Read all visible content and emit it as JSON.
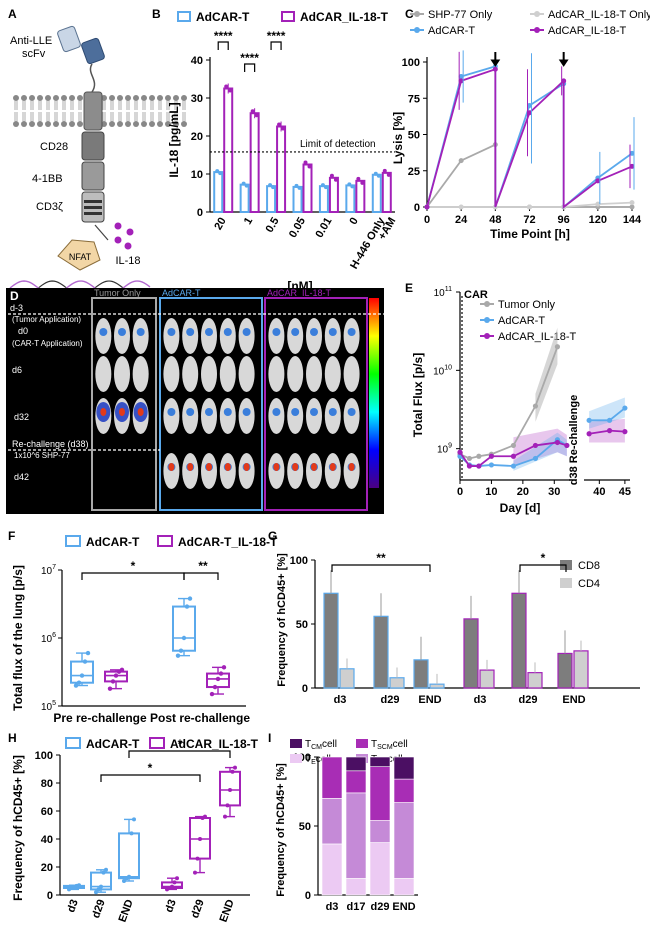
{
  "colors": {
    "adcar": "#5aa9ec",
    "il18": "#a321b8",
    "shp": "#a9a9a9",
    "il18only": "#cfcfcf",
    "cd8": "#7d7d7d",
    "cd4": "#cfcfcf",
    "tcm": "#4b0f63",
    "tscm": "#a82db5",
    "te": "#eccaf3",
    "tem": "#c58ad7"
  },
  "panelA": {
    "label": "A",
    "scfv": "Anti-LLE\nscFv",
    "cd28": "CD28",
    "bb": "4-1BB",
    "cd3z": "CD3ζ",
    "nfat": "NFAT",
    "il18": "IL-18"
  },
  "panelB": {
    "label": "B",
    "legend": [
      "AdCAR-T",
      "AdCAR_IL-18-T"
    ],
    "ylabel": "IL-18 [pg/mL]",
    "xlabel": "[nM]",
    "lod": "Limit of detection",
    "sig": "****",
    "ylim": [
      0,
      40
    ],
    "yticks": [
      "0",
      "10",
      "20",
      "30",
      "40"
    ],
    "categories": [
      "20",
      "1",
      "0.5",
      "0.05",
      "0.01",
      "0",
      "H-446 Only\n+AM"
    ],
    "adcar": [
      10.5,
      7.2,
      6.8,
      6.6,
      6.8,
      7.0,
      9.8
    ],
    "il18": [
      32.5,
      26,
      22.5,
      12.5,
      9.0,
      8.2,
      10.3
    ],
    "lodValue": 15.8
  },
  "panelC": {
    "label": "C",
    "legend": [
      "SHP-77 Only",
      "AdCAR_IL-18-T Only",
      "AdCAR-T",
      "AdCAR_IL-18-T"
    ],
    "ylabel": "Lysis [%]",
    "xlabel": "Time Point [h]",
    "xticks": [
      "0",
      "24",
      "48",
      "72",
      "96",
      "120",
      "144"
    ],
    "yticks": [
      "0",
      "25",
      "50",
      "75",
      "100"
    ],
    "shp": [
      0,
      32,
      43,
      0,
      0,
      0,
      0
    ],
    "il18only": [
      0,
      0,
      0,
      0,
      0,
      2,
      3
    ],
    "adcar": [
      0,
      90,
      97,
      70,
      85,
      20,
      37
    ],
    "il18": [
      0,
      87,
      95,
      65,
      87,
      18,
      28
    ]
  },
  "panelD": {
    "label": "D",
    "cols": [
      "Tumor Only",
      "AdCAR-T",
      "AdCAR_IL-18-T"
    ],
    "rows": [
      "d-3",
      "(Tumor Application)",
      "d0",
      "(CAR-T Application)",
      "d6",
      "d32",
      "Re-challenge (d38)",
      "1x10^6 SHP-77",
      "d42"
    ]
  },
  "panelE": {
    "label": "E",
    "car": "CAR",
    "legend": [
      "Tumor Only",
      "AdCAR-T",
      "AdCAR_IL-18-T"
    ],
    "ylabel": "Total Flux [p/s]",
    "xlabel": "Day [d]",
    "rechallenge": "d38 Re-challenge",
    "xticks": [
      "0",
      "10",
      "20",
      "30"
    ],
    "xticks2": [
      "40",
      "45"
    ],
    "yticks": [
      "10^9",
      "10^10",
      "10^11"
    ],
    "days": [
      0,
      3,
      6,
      10,
      17,
      24,
      31,
      34
    ],
    "tumor": [
      850000000.0,
      750000000.0,
      800000000.0,
      850000000.0,
      1100000000.0,
      3500000000.0,
      20000000000.0,
      null
    ],
    "adcar": [
      800000000.0,
      620000000.0,
      600000000.0,
      620000000.0,
      600000000.0,
      750000000.0,
      1300000000.0,
      1100000000.0
    ],
    "il18": [
      900000000.0,
      600000000.0,
      600000000.0,
      800000000.0,
      800000000.0,
      1100000000.0,
      1200000000.0,
      1100000000.0
    ],
    "re_days": [
      38,
      42,
      45
    ],
    "re_adcar": [
      2300000000.0,
      2300000000.0,
      3300000000.0
    ],
    "re_il18": [
      1550000000.0,
      1700000000.0,
      1650000000.0
    ]
  },
  "panelF": {
    "label": "F",
    "legend": [
      "AdCAR-T",
      "AdCAR-T_IL-18-T"
    ],
    "ylabel": "Total flux of the lung [p/s]",
    "categories": [
      "Pre re-challenge",
      "Post re-challenge"
    ],
    "yticks": [
      "10^5",
      "10^6",
      "10^7"
    ],
    "sig1": "*",
    "sig2": "**",
    "adcar_pre": {
      "min": 200000.0,
      "q1": 220000.0,
      "med": 280000.0,
      "q3": 450000.0,
      "max": 600000.0
    },
    "il18_pre": {
      "min": 180000.0,
      "q1": 230000.0,
      "med": 280000.0,
      "q3": 320000.0,
      "max": 340000.0
    },
    "adcar_post": {
      "min": 550000.0,
      "q1": 650000.0,
      "med": 1000000.0,
      "q3": 2900000.0,
      "max": 3800000.0
    },
    "il18_post": {
      "min": 150000.0,
      "q1": 190000.0,
      "med": 250000.0,
      "q3": 300000.0,
      "max": 370000.0
    }
  },
  "panelG": {
    "label": "G",
    "ylabel": "Frequency of hCD45+ [%]",
    "legend": [
      "CD8",
      "CD4"
    ],
    "sig1": "**",
    "sig2": "*",
    "categories": [
      "d3",
      "d29",
      "END",
      "d3",
      "d29",
      "END"
    ],
    "yticks": [
      "0",
      "50",
      "100"
    ],
    "cd8": [
      74,
      56,
      22,
      54,
      74,
      27
    ],
    "cd4": [
      15,
      8,
      3,
      14,
      12,
      29
    ]
  },
  "panelH": {
    "label": "H",
    "legend": [
      "AdCAR-T",
      "AdCAR_IL-18-T"
    ],
    "ylabel": "Frequency of hCD45+ [%]",
    "categories": [
      "d3",
      "d29",
      "END",
      "d3",
      "d29",
      "END"
    ],
    "yticks": [
      "0",
      "20",
      "40",
      "60",
      "80",
      "100"
    ],
    "sig": "*",
    "boxes": [
      {
        "min": 4,
        "q1": 5,
        "med": 6,
        "q3": 6.5,
        "max": 7
      },
      {
        "min": 2,
        "q1": 4,
        "med": 6,
        "q3": 16,
        "max": 18
      },
      {
        "min": 10,
        "q1": 12,
        "med": 13,
        "q3": 44,
        "max": 54
      },
      {
        "min": 4,
        "q1": 5,
        "med": 6,
        "q3": 9,
        "max": 12
      },
      {
        "min": 16,
        "q1": 26,
        "med": 40,
        "q3": 55,
        "max": 56
      },
      {
        "min": 56,
        "q1": 64,
        "med": 75,
        "q3": 88,
        "max": 91
      }
    ]
  },
  "panelI": {
    "label": "I",
    "ylabel": "Frequency of hCD45+ [%]",
    "categories": [
      "d3",
      "d17",
      "d29",
      "END"
    ],
    "legend": [
      "T",
      "CM",
      "cell",
      "T",
      "SCM",
      "cell",
      "T",
      "E",
      "cell",
      "T",
      "EM",
      "cell"
    ],
    "yticks": [
      "0",
      "50",
      "100"
    ],
    "te": [
      37,
      12,
      38,
      12
    ],
    "tem": [
      33,
      62,
      16,
      55
    ],
    "tscm": [
      30,
      16,
      39,
      17
    ],
    "tcm": [
      0,
      10,
      7,
      16
    ]
  },
  "chart_data": [
    {
      "type": "bar",
      "title": "B",
      "categories": [
        "20",
        "1",
        "0.5",
        "0.05",
        "0.01",
        "0",
        "H-446 Only +AM"
      ],
      "ylabel": "IL-18 [pg/mL]",
      "xlabel": "[nM]",
      "ylim": [
        0,
        40
      ],
      "series": [
        {
          "name": "AdCAR-T",
          "values": [
            10.5,
            7.2,
            6.8,
            6.6,
            6.8,
            7.0,
            9.8
          ]
        },
        {
          "name": "AdCAR_IL-18-T",
          "values": [
            32.5,
            26,
            22.5,
            12.5,
            9.0,
            8.2,
            10.3
          ]
        }
      ]
    },
    {
      "type": "line",
      "title": "C",
      "x": [
        0,
        24,
        48,
        72,
        96,
        120,
        144
      ],
      "ylabel": "Lysis [%]",
      "xlabel": "Time Point [h]",
      "ylim": [
        0,
        100
      ],
      "series": [
        {
          "name": "SHP-77 Only",
          "values": [
            0,
            32,
            43,
            0,
            0,
            0,
            0
          ]
        },
        {
          "name": "AdCAR_IL-18-T Only",
          "values": [
            0,
            0,
            0,
            0,
            0,
            2,
            3
          ]
        },
        {
          "name": "AdCAR-T",
          "values": [
            0,
            90,
            97,
            70,
            85,
            20,
            37
          ]
        },
        {
          "name": "AdCAR_IL-18-T",
          "values": [
            0,
            87,
            95,
            65,
            87,
            18,
            28
          ]
        }
      ]
    },
    {
      "type": "line",
      "title": "E",
      "ylabel": "Total Flux [p/s]",
      "xlabel": "Day [d]"
    },
    {
      "type": "bar",
      "title": "G",
      "categories": [
        "d3",
        "d29",
        "END",
        "d3",
        "d29",
        "END"
      ],
      "ylabel": "Frequency of hCD45+ [%]",
      "series": [
        {
          "name": "CD8",
          "values": [
            74,
            56,
            22,
            54,
            74,
            27
          ]
        },
        {
          "name": "CD4",
          "values": [
            15,
            8,
            3,
            14,
            12,
            29
          ]
        }
      ]
    },
    {
      "type": "bar",
      "title": "I",
      "categories": [
        "d3",
        "d17",
        "d29",
        "END"
      ],
      "ylabel": "Frequency of hCD45+ [%]",
      "series": [
        {
          "name": "TE",
          "values": [
            37,
            12,
            38,
            12
          ]
        },
        {
          "name": "TEM",
          "values": [
            33,
            62,
            16,
            55
          ]
        },
        {
          "name": "TSCM",
          "values": [
            30,
            16,
            39,
            17
          ]
        },
        {
          "name": "TCM",
          "values": [
            0,
            10,
            7,
            16
          ]
        }
      ]
    }
  ]
}
